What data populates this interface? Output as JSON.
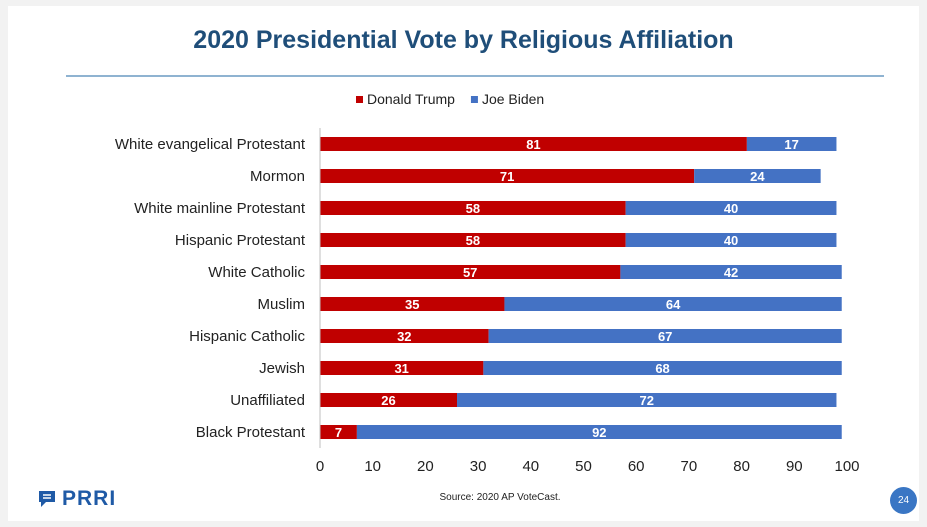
{
  "page": {
    "source": "Source: 2020 AP VoteCast.",
    "logo_text": "PRRI",
    "page_number": "24"
  },
  "colors": {
    "trump": "#c00000",
    "biden": "#4472c4",
    "title": "#1f4e79"
  },
  "chart_data": {
    "type": "bar",
    "orientation": "horizontal",
    "stacked": true,
    "title": "2020 Presidential Vote by Religious Affiliation",
    "categories": [
      "White evangelical Protestant",
      "Mormon",
      "White mainline Protestant",
      "Hispanic Protestant",
      "White Catholic",
      "Muslim",
      "Hispanic Catholic",
      "Jewish",
      "Unaffiliated",
      "Black Protestant"
    ],
    "series": [
      {
        "name": "Donald Trump",
        "color": "#c00000",
        "values": [
          81,
          71,
          58,
          58,
          57,
          35,
          32,
          31,
          26,
          7
        ]
      },
      {
        "name": "Joe Biden",
        "color": "#4472c4",
        "values": [
          17,
          24,
          40,
          40,
          42,
          64,
          67,
          68,
          72,
          92
        ]
      }
    ],
    "xlim": [
      0,
      100
    ],
    "xticks": [
      0,
      10,
      20,
      30,
      40,
      50,
      60,
      70,
      80,
      90,
      100
    ],
    "legend": "top",
    "grid": false
  }
}
